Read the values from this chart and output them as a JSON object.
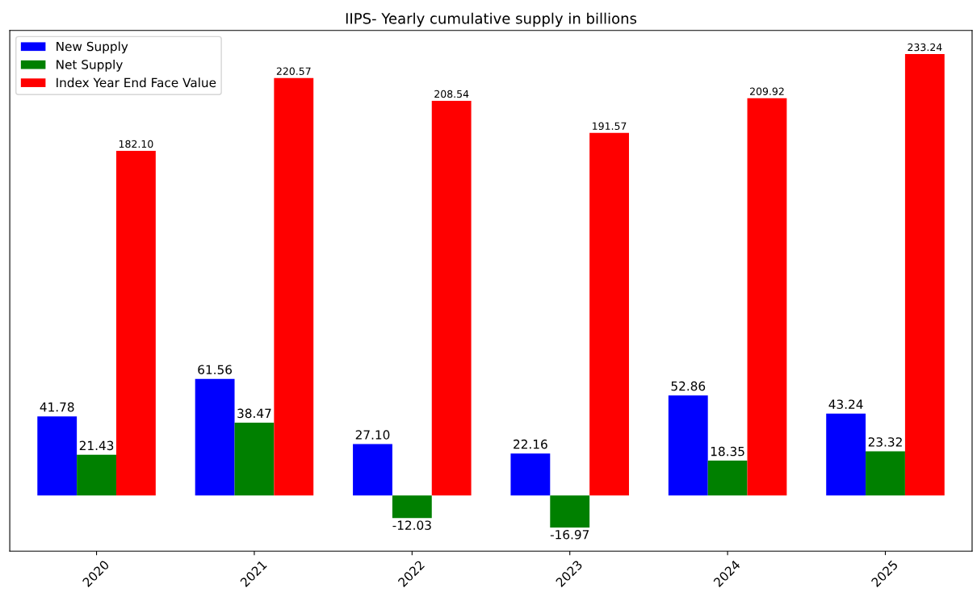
{
  "chart_data": {
    "type": "bar",
    "title": "IIPS- Yearly cumulative supply in billions",
    "categories": [
      "2020",
      "2021",
      "2022",
      "2023",
      "2024",
      "2025"
    ],
    "series": [
      {
        "name": "New Supply",
        "color": "#0000ff",
        "values": [
          41.78,
          61.56,
          27.1,
          22.16,
          52.86,
          43.24
        ],
        "value_labels": [
          "41.78",
          "61.56",
          "27.10",
          "22.16",
          "52.86",
          "43.24"
        ]
      },
      {
        "name": "Net Supply",
        "color": "#008000",
        "values": [
          21.43,
          38.47,
          -12.03,
          -16.97,
          18.35,
          23.32
        ],
        "value_labels": [
          "21.43",
          "38.47",
          "-12.03",
          "-16.97",
          "18.35",
          "23.32"
        ]
      },
      {
        "name": "Index Year End Face Value",
        "color": "#ff0000",
        "values": [
          182.1,
          220.57,
          208.54,
          191.57,
          209.92,
          233.24
        ],
        "value_labels": [
          "182.10",
          "220.57",
          "208.54",
          "191.57",
          "209.92",
          "233.24"
        ]
      }
    ],
    "legend": "top left",
    "tick_labels": "x",
    "grid": false
  }
}
